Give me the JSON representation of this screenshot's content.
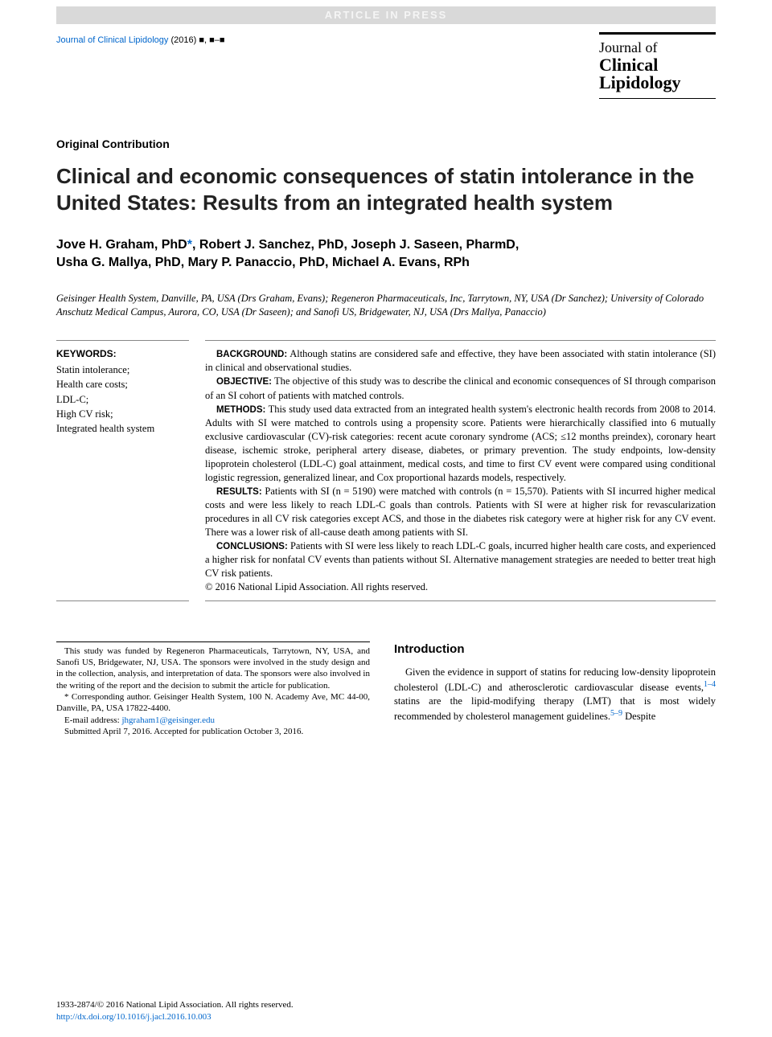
{
  "banner": "ARTICLE IN PRESS",
  "journal_ref": {
    "name": "Journal of Clinical Lipidology",
    "year": "(2016)",
    "vol": "■,",
    "pages": "■–■"
  },
  "journal_logo": {
    "line1": "Journal of",
    "line2": "Clinical",
    "line3": "Lipidology"
  },
  "article_type": "Original Contribution",
  "title": "Clinical and economic consequences of statin intolerance in the United States: Results from an integrated health system",
  "authors_line1": "Jove H. Graham, PhD",
  "authors_corr": "*",
  "authors_line1b": ", Robert J. Sanchez, PhD, Joseph J. Saseen, PharmD,",
  "authors_line2": "Usha G. Mallya, PhD, Mary P. Panaccio, PhD, Michael A. Evans, RPh",
  "affiliations": "Geisinger Health System, Danville, PA, USA (Drs Graham, Evans); Regeneron Pharmaceuticals, Inc, Tarrytown, NY, USA (Dr Sanchez); University of Colorado Anschutz Medical Campus, Aurora, CO, USA (Dr Saseen); and Sanofi US, Bridgewater, NJ, USA (Drs Mallya, Panaccio)",
  "keywords": {
    "head": "KEYWORDS:",
    "items": [
      "Statin intolerance;",
      "Health care costs;",
      "LDL-C;",
      "High CV risk;",
      "Integrated health system"
    ]
  },
  "abstract": {
    "background_head": "BACKGROUND:",
    "background": " Although statins are considered safe and effective, they have been associated with statin intolerance (SI) in clinical and observational studies.",
    "objective_head": "OBJECTIVE:",
    "objective": " The objective of this study was to describe the clinical and economic consequences of SI through comparison of an SI cohort of patients with matched controls.",
    "methods_head": "METHODS:",
    "methods": " This study used data extracted from an integrated health system's electronic health records from 2008 to 2014. Adults with SI were matched to controls using a propensity score. Patients were hierarchically classified into 6 mutually exclusive cardiovascular (CV)-risk categories: recent acute coronary syndrome (ACS; ≤12 months preindex), coronary heart disease, ischemic stroke, peripheral artery disease, diabetes, or primary prevention. The study endpoints, low-density lipoprotein cholesterol (LDL-C) goal attainment, medical costs, and time to first CV event were compared using conditional logistic regression, generalized linear, and Cox proportional hazards models, respectively.",
    "results_head": "RESULTS:",
    "results": " Patients with SI (n = 5190) were matched with controls (n = 15,570). Patients with SI incurred higher medical costs and were less likely to reach LDL-C goals than controls. Patients with SI were at higher risk for revascularization procedures in all CV risk categories except ACS, and those in the diabetes risk category were at higher risk for any CV event. There was a lower risk of all-cause death among patients with SI.",
    "conclusions_head": "CONCLUSIONS:",
    "conclusions": " Patients with SI were less likely to reach LDL-C goals, incurred higher health care costs, and experienced a higher risk for nonfatal CV events than patients without SI. Alternative management strategies are needed to better treat high CV risk patients.",
    "copyright": "© 2016 National Lipid Association. All rights reserved."
  },
  "footnote": {
    "funding": "This study was funded by Regeneron Pharmaceuticals, Tarrytown, NY, USA, and Sanofi US, Bridgewater, NJ, USA. The sponsors were involved in the study design and in the collection, analysis, and interpretation of data. The sponsors were also involved in the writing of the report and the decision to submit the article for publication.",
    "corr": "* Corresponding author. Geisinger Health System, 100 N. Academy Ave, MC 44-00, Danville, PA, USA 17822-4400.",
    "email_label": "E-mail address: ",
    "email": "jhgraham1@geisinger.edu",
    "submitted": "Submitted April 7, 2016. Accepted for publication October 3, 2016."
  },
  "intro": {
    "head": "Introduction",
    "para": "Given the evidence in support of statins for reducing low-density lipoprotein cholesterol (LDL-C) and atherosclerotic cardiovascular disease events,",
    "cite1": "1–4",
    "para2": " statins are the lipid-modifying therapy (LMT) that is most widely recommended by cholesterol management guidelines.",
    "cite2": "5–9",
    "para3": " Despite"
  },
  "bottom_copyright": {
    "line1": "1933-2874/© 2016 National Lipid Association. All rights reserved.",
    "doi": "http://dx.doi.org/10.1016/j.jacl.2016.10.003"
  }
}
